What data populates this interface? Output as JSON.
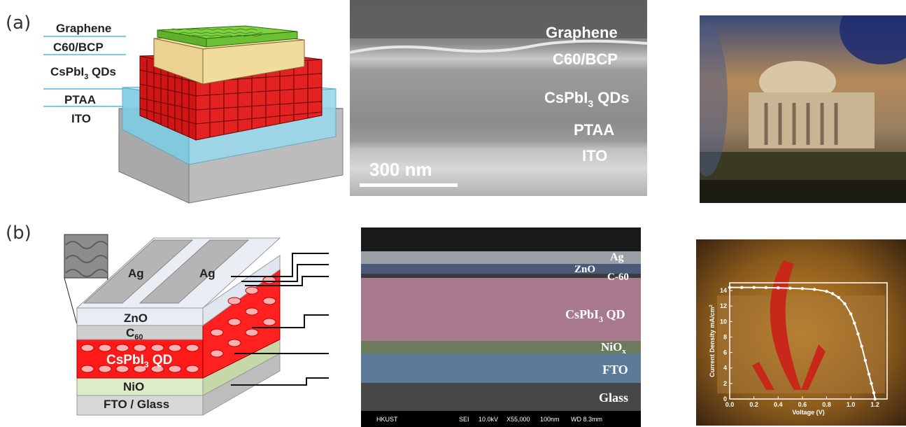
{
  "panel_a": {
    "label": "(a)",
    "schematic_layers": [
      "Graphene",
      "C60/BCP",
      "CsPbI",
      "3",
      " QDs",
      "PTAA",
      "ITO"
    ],
    "sem_labels": {
      "graphene": "Graphene",
      "c60": "C60/BCP",
      "qd_main": "CsPbI",
      "qd_sub": "3",
      "qd_tail": " QDs",
      "ptaa": "PTAA",
      "ito": "ITO"
    },
    "scale_bar": "300 nm"
  },
  "panel_b": {
    "label": "(b)",
    "schematic": {
      "ag1": "Ag",
      "ag2": "Ag",
      "zno": "ZnO",
      "c60_main": "C",
      "c60_sub": "60",
      "qd_main": "CsPbI",
      "qd_sub": "3",
      "qd_tail": " QD",
      "nio": "NiO",
      "fto": "FTO / Glass"
    },
    "sem_labels": {
      "ag": "Ag",
      "zno": "ZnO",
      "c60": "C-60",
      "qd_main": "CsPbI",
      "qd_sub": "3",
      "qd_tail": " QD",
      "nio_main": "NiO",
      "nio_sub": "x",
      "fto": "FTO",
      "glass": "Glass"
    },
    "sem_footer": [
      "HKUST",
      "SEI",
      "10.0kV",
      "X55,000",
      "100nm",
      "WD 8.3mm"
    ]
  },
  "chart_data": {
    "type": "line",
    "xlabel": "Voltage (V)",
    "ylabel": "Current Density mA/cm",
    "ylabel_sup": "2",
    "xlim": [
      0.0,
      1.3
    ],
    "ylim": [
      0,
      15
    ],
    "xticks": [
      "0.0",
      "0.2",
      "0.4",
      "0.6",
      "0.8",
      "1.0",
      "1.2"
    ],
    "yticks": [
      "0",
      "2",
      "4",
      "6",
      "8",
      "10",
      "12",
      "14"
    ],
    "series": [
      {
        "x": [
          0.0,
          0.1,
          0.2,
          0.3,
          0.4,
          0.5,
          0.6,
          0.7,
          0.8,
          0.85,
          0.9,
          0.95,
          1.0,
          1.03,
          1.06,
          1.09,
          1.12,
          1.15,
          1.17,
          1.19,
          1.2
        ],
        "values": [
          14.4,
          14.4,
          14.4,
          14.38,
          14.35,
          14.3,
          14.25,
          14.15,
          13.9,
          13.6,
          13.1,
          12.3,
          11.0,
          9.8,
          8.4,
          6.8,
          5.0,
          3.2,
          2.0,
          0.8,
          0.0
        ]
      }
    ],
    "color": "#ffffff",
    "grid": false
  }
}
